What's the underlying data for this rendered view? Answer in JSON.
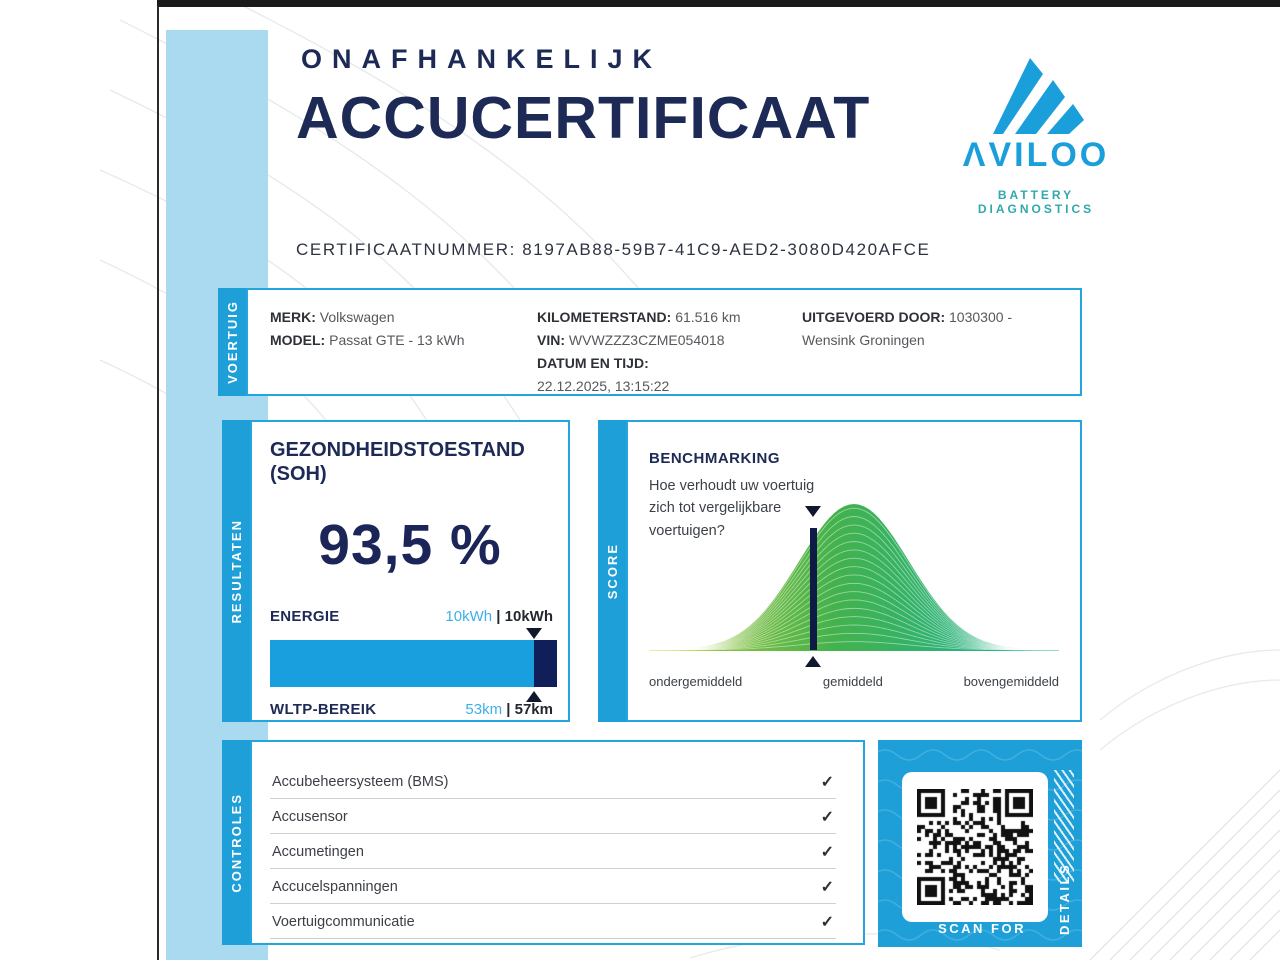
{
  "header": {
    "title_line1": "ONAFHANKELIJK",
    "title_line2": "ACCUCERTIFICAAT",
    "cert_label": "CERTIFICAATNUMMER:",
    "cert_number": "8197AB88-59B7-41C9-AED2-3080D420AFCE",
    "cert_full": "CERTIFICAATNUMMER: 8197AB88-59B7-41C9-AED2-3080D420AFCE"
  },
  "logo": {
    "brand_display": "ΛVILOO",
    "tagline": "BATTERY DIAGNOSTICS"
  },
  "colors": {
    "brand_blue": "#1e9fd8",
    "navy": "#1c2a55",
    "band_blue": "#aadaf0",
    "bar_dark_navy": "#101f5a",
    "tagline_teal": "#2fa9ad",
    "curve_yellow": "#d9e13c",
    "curve_green": "#44b24c",
    "curve_teal": "#23b598"
  },
  "voertuig": {
    "tab": "VOERTUIG",
    "merk_label": "MERK:",
    "merk": "Volkswagen",
    "model_label": "MODEL:",
    "model": "Passat GTE - 13 kWh",
    "km_label": "KILOMETERSTAND:",
    "km": "61.516 km",
    "vin_label": "VIN:",
    "vin": "WVWZZZ3CZME054018",
    "datum_label": "DATUM EN TIJD:",
    "datum": "22.12.2025, 13:15:22",
    "door_label": "UITGEVOERD DOOR:",
    "door": "1030300 - Wensink Groningen"
  },
  "resultaten": {
    "tab": "RESULTATEN",
    "soh_label": "GEZONDHEIDSTOESTAND (SOH)",
    "soh_value": "93,5 %",
    "energie_label": "ENERGIE",
    "energie_current": "10kWh",
    "energie_sep": " | ",
    "energie_original": "10kWh",
    "wltp_label": "WLTP-BEREIK",
    "wltp_current": "53km",
    "wltp_sep": " | ",
    "wltp_original": "57km",
    "bar_fill_pct": 92
  },
  "score": {
    "tab": "SCORE",
    "title": "BENCHMARKING",
    "question": "Hoe verhoudt uw voertuig zich tot vergelijkbare voertuigen?",
    "axis_labels": [
      "ondergemiddeld",
      "gemiddeld",
      "bovengemiddeld"
    ],
    "marker_position_pct": 40
  },
  "controles": {
    "tab": "CONTROLES",
    "check": "✓",
    "items": [
      "Accubeheersysteem (BMS)",
      "Accusensor",
      "Accumetingen",
      "Accucelspanningen",
      "Voertuigcommunicatie"
    ]
  },
  "qr": {
    "scan_label": "SCAN FOR",
    "details_label": "DETAILS"
  }
}
